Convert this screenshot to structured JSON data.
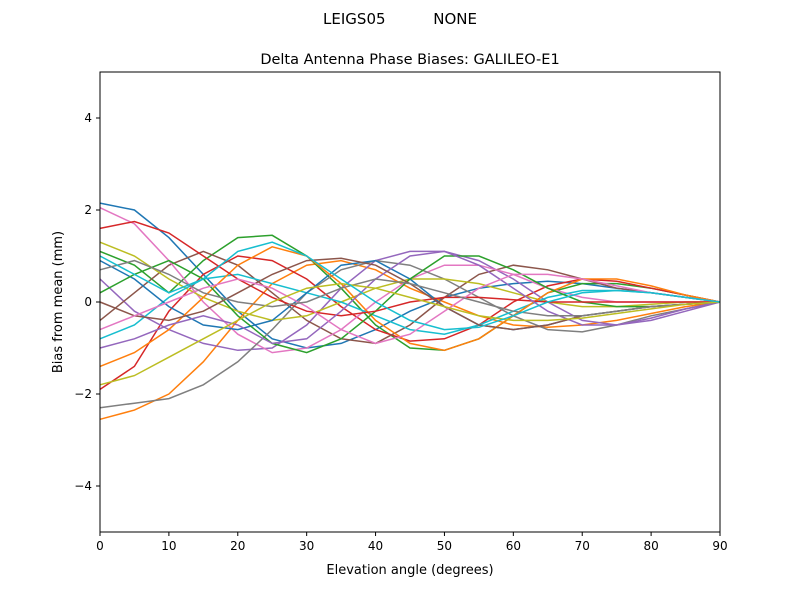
{
  "chart_data": {
    "type": "line",
    "suptitle": "LEIGS05          NONE",
    "title": "Delta Antenna Phase Biases: GALILEO-E1",
    "xlabel": "Elevation angle (degrees)",
    "ylabel": "Bias from mean (mm)",
    "xlim": [
      0,
      90
    ],
    "ylim": [
      -5,
      5
    ],
    "xticks": [
      0,
      10,
      20,
      30,
      40,
      50,
      60,
      70,
      80,
      90
    ],
    "xtick_labels": [
      "0",
      "10",
      "20",
      "30",
      "40",
      "50",
      "60",
      "70",
      "80",
      "90"
    ],
    "yticks": [
      -4,
      -2,
      0,
      2,
      4
    ],
    "ytick_labels": [
      "−4",
      "−2",
      "0",
      "2",
      "4"
    ],
    "grid": false,
    "legend": "none",
    "colors": [
      "#1f77b4",
      "#ff7f0e",
      "#2ca02c",
      "#d62728",
      "#9467bd",
      "#8c564b",
      "#e377c2",
      "#7f7f7f",
      "#bcbd22",
      "#17becf"
    ],
    "x": [
      0,
      5,
      10,
      15,
      20,
      25,
      30,
      35,
      40,
      45,
      50,
      55,
      60,
      65,
      70,
      75,
      80,
      85,
      90
    ],
    "series": [
      {
        "values": [
          2.15,
          2.0,
          1.4,
          0.6,
          -0.2,
          -0.8,
          -1.0,
          -0.9,
          -0.6,
          -0.2,
          0.1,
          0.3,
          0.4,
          0.45,
          0.4,
          0.3,
          0.2,
          0.1,
          0
        ]
      },
      {
        "values": [
          -2.55,
          -2.35,
          -2.0,
          -1.3,
          -0.4,
          0.4,
          0.8,
          0.9,
          0.7,
          0.3,
          0,
          -0.3,
          -0.5,
          -0.55,
          -0.5,
          -0.4,
          -0.25,
          -0.1,
          0
        ]
      },
      {
        "values": [
          1.1,
          0.8,
          0.2,
          0.9,
          1.4,
          1.45,
          1.0,
          0.3,
          -0.5,
          -1.0,
          -1.05,
          -0.8,
          -0.3,
          0.2,
          0.4,
          0.4,
          0.3,
          0.15,
          0
        ]
      },
      {
        "values": [
          -1.9,
          -1.4,
          -0.2,
          0.6,
          1.0,
          0.9,
          0.5,
          -0.1,
          -0.6,
          -0.85,
          -0.8,
          -0.5,
          0,
          0.35,
          0.5,
          0.45,
          0.3,
          0.15,
          0
        ]
      },
      {
        "values": [
          0.5,
          -0.2,
          -0.6,
          -0.9,
          -1.05,
          -1.0,
          -0.5,
          0.3,
          0.9,
          1.1,
          1.1,
          0.9,
          0.5,
          0,
          -0.4,
          -0.5,
          -0.4,
          -0.2,
          0
        ]
      },
      {
        "values": [
          -0.4,
          0.2,
          0.8,
          1.1,
          0.8,
          0.2,
          -0.4,
          -0.8,
          -0.9,
          -0.5,
          0.1,
          0.6,
          0.8,
          0.7,
          0.5,
          0.3,
          0.2,
          0.1,
          0
        ]
      },
      {
        "values": [
          2.05,
          1.7,
          0.9,
          0.0,
          -0.7,
          -1.1,
          -1.0,
          -0.6,
          0,
          0.5,
          0.8,
          0.8,
          0.6,
          0.3,
          0.1,
          0,
          0,
          0,
          0
        ]
      },
      {
        "values": [
          -2.3,
          -2.2,
          -2.1,
          -1.8,
          -1.3,
          -0.6,
          0.2,
          0.7,
          0.9,
          0.8,
          0.5,
          0.1,
          -0.3,
          -0.6,
          -0.65,
          -0.5,
          -0.3,
          -0.15,
          0
        ]
      },
      {
        "values": [
          1.3,
          1.0,
          0.5,
          0.1,
          -0.2,
          -0.4,
          -0.3,
          0.0,
          0.3,
          0.5,
          0.5,
          0.4,
          0.2,
          0,
          -0.1,
          -0.1,
          -0.05,
          0,
          0
        ]
      },
      {
        "values": [
          -0.8,
          -0.5,
          0.1,
          0.5,
          0.6,
          0.4,
          0.2,
          0.0,
          -0.3,
          -0.6,
          -0.7,
          -0.5,
          -0.2,
          0.1,
          0.25,
          0.25,
          0.2,
          0.1,
          0
        ]
      },
      {
        "values": [
          0.9,
          0.5,
          -0.1,
          -0.5,
          -0.6,
          -0.4,
          0.2,
          0.8,
          0.9,
          0.5,
          -0.1,
          -0.5,
          -0.6,
          -0.5,
          -0.3,
          -0.2,
          -0.1,
          -0.05,
          0
        ]
      },
      {
        "values": [
          -1.4,
          -1.1,
          -0.6,
          0.1,
          0.8,
          1.2,
          1.0,
          0.4,
          -0.4,
          -0.9,
          -1.05,
          -0.8,
          -0.3,
          0.2,
          0.5,
          0.5,
          0.35,
          0.15,
          0
        ]
      },
      {
        "values": [
          0.2,
          0.6,
          0.9,
          0.5,
          -0.3,
          -0.9,
          -1.1,
          -0.8,
          -0.2,
          0.5,
          1.0,
          1.0,
          0.7,
          0.3,
          0,
          -0.1,
          -0.1,
          -0.05,
          0
        ]
      },
      {
        "values": [
          1.6,
          1.75,
          1.5,
          1.0,
          0.5,
          0.1,
          -0.2,
          -0.3,
          -0.2,
          0.0,
          0.1,
          0.1,
          0.05,
          0,
          0,
          0,
          0,
          0,
          0
        ]
      },
      {
        "values": [
          -1.0,
          -0.8,
          -0.5,
          -0.3,
          -0.5,
          -0.9,
          -0.8,
          -0.2,
          0.5,
          1.0,
          1.1,
          0.8,
          0.3,
          -0.2,
          -0.5,
          -0.5,
          -0.35,
          -0.15,
          0
        ]
      },
      {
        "values": [
          0.0,
          -0.3,
          -0.4,
          -0.2,
          0.2,
          0.6,
          0.9,
          0.95,
          0.8,
          0.4,
          -0.1,
          -0.5,
          -0.6,
          -0.5,
          -0.3,
          -0.2,
          -0.1,
          -0.05,
          0
        ]
      },
      {
        "values": [
          -0.6,
          -0.3,
          0.0,
          0.3,
          0.5,
          0.3,
          -0.1,
          -0.6,
          -0.9,
          -0.7,
          -0.2,
          0.3,
          0.6,
          0.6,
          0.5,
          0.35,
          0.2,
          0.1,
          0
        ]
      },
      {
        "values": [
          0.7,
          0.9,
          0.6,
          0.2,
          0.0,
          -0.1,
          0.0,
          0.3,
          0.5,
          0.4,
          0.2,
          0.0,
          -0.2,
          -0.3,
          -0.3,
          -0.2,
          -0.1,
          -0.05,
          0
        ]
      },
      {
        "values": [
          -1.8,
          -1.6,
          -1.2,
          -0.8,
          -0.4,
          0,
          0.3,
          0.4,
          0.3,
          0.1,
          -0.1,
          -0.3,
          -0.4,
          -0.4,
          -0.35,
          -0.25,
          -0.15,
          -0.05,
          0
        ]
      },
      {
        "values": [
          1.0,
          0.6,
          0.2,
          0.5,
          1.1,
          1.3,
          1.0,
          0.5,
          0,
          -0.4,
          -0.6,
          -0.55,
          -0.3,
          0,
          0.2,
          0.25,
          0.2,
          0.1,
          0
        ]
      }
    ]
  }
}
